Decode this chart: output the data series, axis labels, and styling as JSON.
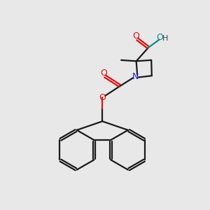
{
  "bg_color": "#e8e8e8",
  "bond_color": "#1a1a1a",
  "oxygen_color": "#dd1111",
  "nitrogen_color": "#2222cc",
  "oh_oxygen_color": "#118888",
  "line_width": 1.6,
  "fig_size": [
    3.0,
    3.0
  ],
  "dpi": 100,
  "xlim": [
    0,
    10
  ],
  "ylim": [
    0,
    10
  ]
}
